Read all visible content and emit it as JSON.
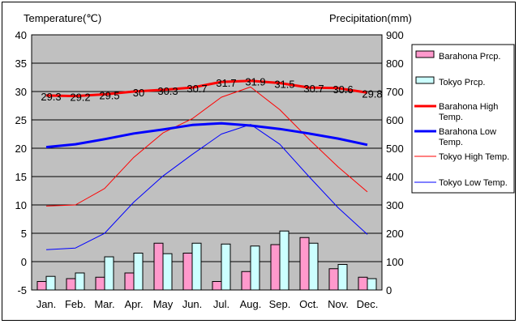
{
  "chart_data": {
    "type": "bar+line",
    "left_axis_label": "Temperature(℃)",
    "right_axis_label": "Precipitation(mm)",
    "categories": [
      "Jan.",
      "Feb.",
      "Mar.",
      "Apr.",
      "May",
      "Jun.",
      "Jul.",
      "Aug.",
      "Sep.",
      "Oct.",
      "Nov.",
      "Dec."
    ],
    "temp_axis": {
      "min": -5,
      "max": 40,
      "ticks": [
        -5,
        0,
        5,
        10,
        15,
        20,
        25,
        30,
        35,
        40
      ]
    },
    "precip_axis": {
      "min": 0,
      "max": 900,
      "ticks": [
        0,
        100,
        200,
        300,
        400,
        500,
        600,
        700,
        800,
        900
      ]
    },
    "grid": true,
    "plot_background": "#c0c0c0",
    "legend_position": "right",
    "bar_series": [
      {
        "name": "Barahona Prcp.",
        "color": "#ff99cc",
        "values": [
          30,
          40,
          45,
          60,
          165,
          130,
          30,
          65,
          160,
          185,
          75,
          45
        ]
      },
      {
        "name": "Tokyo Prcp.",
        "color": "#ccffff",
        "values": [
          48,
          60,
          117,
          130,
          128,
          165,
          162,
          155,
          208,
          165,
          90,
          40
        ]
      }
    ],
    "line_series": [
      {
        "name": "Barahona High Temp.",
        "color": "#ff0000",
        "width": 3,
        "values": [
          29.3,
          29.2,
          29.5,
          30,
          30.3,
          30.7,
          31.7,
          31.9,
          31.5,
          30.7,
          30.6,
          29.8
        ]
      },
      {
        "name": "Barahona Low Temp.",
        "color": "#0000ff",
        "width": 3,
        "values": [
          20.2,
          20.7,
          21.6,
          22.6,
          23.3,
          24.1,
          24.4,
          24.0,
          23.4,
          22.6,
          21.7,
          20.6
        ]
      },
      {
        "name": "Tokyo High Temp.",
        "color": "#ff0000",
        "width": 1,
        "values": [
          9.8,
          10.0,
          12.9,
          18.4,
          22.7,
          25.2,
          29.0,
          30.8,
          26.8,
          21.6,
          16.7,
          12.3
        ]
      },
      {
        "name": "Tokyo Low Temp.",
        "color": "#0000ff",
        "width": 1,
        "values": [
          2.1,
          2.4,
          5.0,
          10.5,
          15.1,
          18.9,
          22.5,
          24.2,
          20.7,
          15.0,
          9.5,
          4.8
        ]
      }
    ],
    "data_labels": [
      "29.3",
      "29.2",
      "29.5",
      "30",
      "30.3",
      "30.7",
      "31.7",
      "31.9",
      "31.5",
      "30.7",
      "30.6",
      "29.8"
    ]
  }
}
